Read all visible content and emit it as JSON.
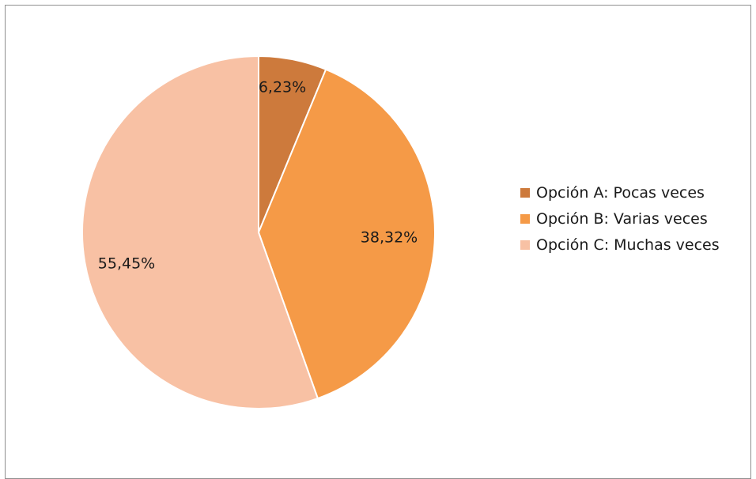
{
  "chart_data": {
    "type": "pie",
    "title": "",
    "slices": [
      {
        "label": "Opción A: Pocas veces",
        "value": 6.23,
        "display": "6,23%",
        "color": "#cd7a3c"
      },
      {
        "label": "Opción B: Varias veces",
        "value": 38.32,
        "display": "38,32%",
        "color": "#f59a47"
      },
      {
        "label": "Opción C: Muchas veces",
        "value": 55.45,
        "display": "55,45%",
        "color": "#f8c1a4"
      }
    ],
    "start_angle_deg": 0,
    "direction": "clockwise",
    "legend_position": "right",
    "show_percent_labels": true
  },
  "legend": {
    "items": [
      {
        "label": "Opción A: Pocas veces",
        "color": "#cd7a3c"
      },
      {
        "label": "Opción B: Varias veces",
        "color": "#f59a47"
      },
      {
        "label": "Opción C: Muchas veces",
        "color": "#f8c1a4"
      }
    ]
  }
}
